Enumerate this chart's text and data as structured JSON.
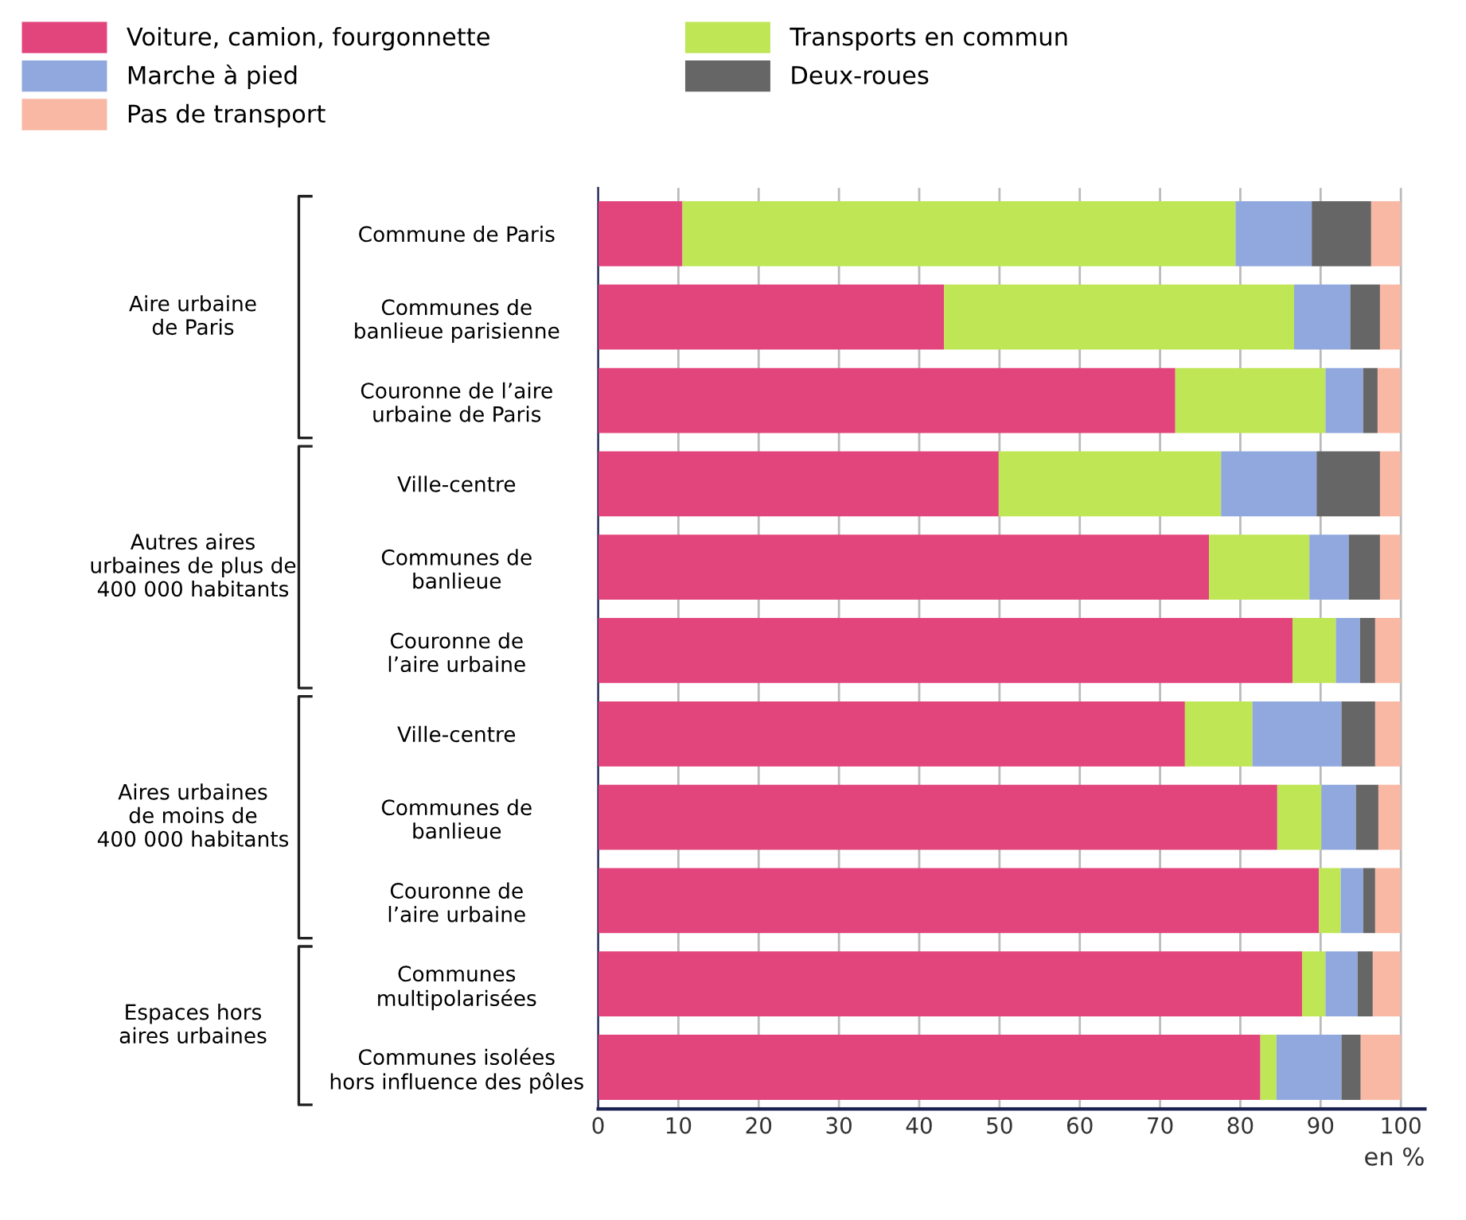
{
  "chart_data": {
    "type": "bar",
    "orientation": "horizontal",
    "stacked": true,
    "categories": [
      "Commune de Paris",
      "Communes de\nbanlieue parisienne",
      "Couronne de l’aire\nurbaine de Paris",
      "Ville-centre",
      "Communes de\nbanlieue",
      "Couronne de\nl’aire urbaine",
      "Ville-centre",
      "Communes de\nbanlieue",
      "Couronne de\nl’aire urbaine",
      "Communes\nmultipolarisées",
      "Communes isolées\nhors influence des pôles"
    ],
    "series": [
      {
        "name": "Voiture, camion, fourgonnette",
        "color": "#e2457c",
        "values": [
          10.5,
          43.1,
          71.9,
          49.9,
          76.1,
          86.5,
          73.1,
          84.6,
          89.8,
          87.7,
          82.5
        ]
      },
      {
        "name": "Transports en commun",
        "color": "#bfe655",
        "values": [
          68.9,
          43.6,
          18.7,
          27.7,
          12.5,
          5.4,
          8.4,
          5.5,
          2.7,
          2.9,
          2.0
        ]
      },
      {
        "name": "Marche à pied",
        "color": "#90a8de",
        "values": [
          9.5,
          7.0,
          4.7,
          11.9,
          4.9,
          3.0,
          11.1,
          4.3,
          2.8,
          4.0,
          8.1
        ]
      },
      {
        "name": "Deux-roues",
        "color": "#666666",
        "values": [
          7.4,
          3.7,
          1.8,
          7.9,
          3.9,
          1.9,
          4.2,
          2.8,
          1.5,
          1.9,
          2.4
        ]
      },
      {
        "name": "Pas de transport",
        "color": "#f9b8a4",
        "values": [
          3.7,
          2.6,
          2.9,
          2.6,
          2.6,
          3.2,
          3.2,
          2.8,
          3.2,
          3.5,
          5.0
        ]
      }
    ],
    "xlim": [
      0,
      103
    ],
    "xticks": [
      0,
      10,
      20,
      30,
      40,
      50,
      60,
      70,
      80,
      90,
      100
    ],
    "xlabel": "en %",
    "annotations": [
      "Aire urbaine\nde Paris",
      "Autres aires\nurbaines de plus de\n400 000 habitants",
      "Aires urbaines\nde moins de\n400 000 habitants",
      "Espaces hors\naires urbaines"
    ],
    "grid": "x",
    "legend": "top"
  }
}
